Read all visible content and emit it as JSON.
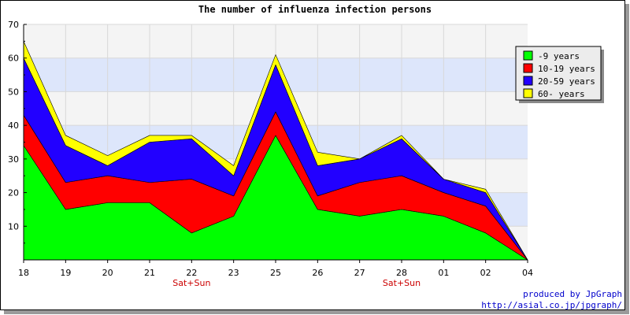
{
  "chart_data": {
    "type": "area",
    "stacked": true,
    "title": "The number of influenza infection persons",
    "categories": [
      "18",
      "19",
      "20",
      "21",
      "22",
      "23",
      "25",
      "26",
      "27",
      "28",
      "01",
      "02",
      "04"
    ],
    "category_sublabels": [
      "",
      "",
      "",
      "",
      "Sat+Sun",
      "",
      "",
      "",
      "",
      "Sat+Sun",
      "",
      "",
      ""
    ],
    "ylim": [
      0,
      70
    ],
    "yticks": [
      10,
      20,
      30,
      40,
      50,
      60,
      70
    ],
    "grid": true,
    "legend_position": "top-right",
    "series": [
      {
        "name": "-9 years",
        "color": "#00ff00",
        "values": [
          34,
          15,
          17,
          17,
          8,
          13,
          37,
          15,
          13,
          15,
          13,
          8,
          0
        ]
      },
      {
        "name": "10-19 years",
        "color": "#ff0000",
        "values": [
          9,
          8,
          8,
          6,
          16,
          6,
          7,
          4,
          10,
          10,
          7,
          8,
          0
        ]
      },
      {
        "name": "20-59 years",
        "color": "#2200ff",
        "values": [
          17,
          11,
          3,
          12,
          12,
          6,
          14,
          9,
          7,
          11,
          4,
          4,
          0
        ]
      },
      {
        "name": "60- years",
        "color": "#ffff00",
        "values": [
          5,
          3,
          3,
          2,
          1,
          3,
          3,
          4,
          0,
          1,
          0,
          1,
          0
        ]
      }
    ]
  },
  "footer": {
    "line1": "produced by JpGraph",
    "line2": "http://asial.co.jp/jpgraph/"
  },
  "colors": {
    "band_light": "#f4f4f4",
    "band_blue": "#dde6fb"
  }
}
